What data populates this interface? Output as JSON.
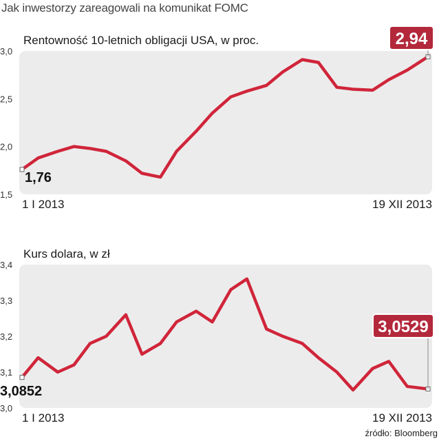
{
  "page_title": "Jak inwestorzy zareagowali na komunikat FOMC",
  "source": "źródło: Bloomberg",
  "colors": {
    "line": "#d0253a",
    "panel": "#ececec",
    "callout": "#b3283b",
    "callout_text": "#ffffff"
  },
  "chart_data": [
    {
      "type": "line",
      "title": "Rentowność 10-letnich obligacji USA, w proc.",
      "ylim": [
        1.5,
        3.0
      ],
      "yticks": [
        "1,5",
        "2,0",
        "2,5",
        "3,0"
      ],
      "ytick_values": [
        1.5,
        2.0,
        2.5,
        3.0
      ],
      "x_start_label": "1 I 2013",
      "x_end_label": "19 XII 2013",
      "x": [
        "2013-01-01",
        "2013-01-15",
        "2013-02-01",
        "2013-02-15",
        "2013-03-01",
        "2013-03-15",
        "2013-04-01",
        "2013-04-15",
        "2013-05-01",
        "2013-05-15",
        "2013-06-01",
        "2013-06-15",
        "2013-07-01",
        "2013-07-15",
        "2013-08-01",
        "2013-08-15",
        "2013-09-01",
        "2013-09-15",
        "2013-10-01",
        "2013-10-15",
        "2013-11-01",
        "2013-11-15",
        "2013-12-01",
        "2013-12-19"
      ],
      "series": [
        {
          "values": [
            1.76,
            1.88,
            1.95,
            2.0,
            1.98,
            1.95,
            1.85,
            1.72,
            1.68,
            1.95,
            2.16,
            2.35,
            2.52,
            2.58,
            2.64,
            2.78,
            2.91,
            2.88,
            2.62,
            2.6,
            2.59,
            2.7,
            2.8,
            2.94
          ]
        }
      ],
      "annotations": {
        "start": "1,76",
        "end": "2,94"
      },
      "grid": false
    },
    {
      "type": "line",
      "title": "Kurs dolara, w zł",
      "ylim": [
        3.0,
        3.4
      ],
      "yticks": [
        "3,0",
        "3,1",
        "3,2",
        "3,3",
        "3,4"
      ],
      "ytick_values": [
        3.0,
        3.1,
        3.2,
        3.3,
        3.4
      ],
      "x_start_label": "1 I 2013",
      "x_end_label": "19 XII 2013",
      "x": [
        "2013-01-01",
        "2013-01-15",
        "2013-02-01",
        "2013-02-15",
        "2013-03-01",
        "2013-03-15",
        "2013-04-01",
        "2013-04-15",
        "2013-05-01",
        "2013-05-15",
        "2013-06-01",
        "2013-06-15",
        "2013-07-01",
        "2013-07-15",
        "2013-08-01",
        "2013-08-15",
        "2013-09-01",
        "2013-09-15",
        "2013-10-01",
        "2013-10-15",
        "2013-11-01",
        "2013-11-15",
        "2013-12-01",
        "2013-12-19"
      ],
      "series": [
        {
          "values": [
            3.0852,
            3.14,
            3.1,
            3.12,
            3.18,
            3.2,
            3.26,
            3.15,
            3.18,
            3.24,
            3.27,
            3.24,
            3.33,
            3.36,
            3.22,
            3.2,
            3.18,
            3.14,
            3.1,
            3.05,
            3.11,
            3.13,
            3.06,
            3.0529
          ]
        }
      ],
      "annotations": {
        "start": "3,0852",
        "end": "3,0529"
      },
      "grid": false
    }
  ]
}
